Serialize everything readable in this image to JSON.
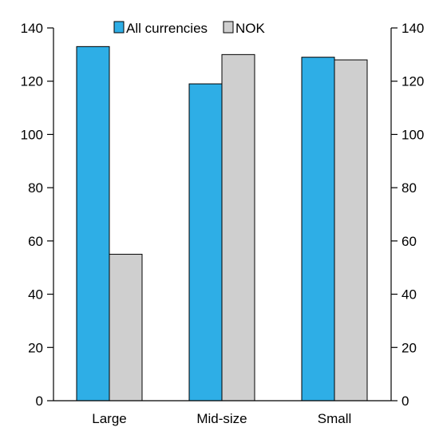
{
  "chart_data": {
    "type": "bar",
    "categories": [
      "Large",
      "Mid-size",
      "Small"
    ],
    "series": [
      {
        "name": "All currencies",
        "values": [
          133,
          119,
          129
        ],
        "color": "#2eaee6"
      },
      {
        "name": "NOK",
        "values": [
          55,
          130,
          128
        ],
        "color": "#cfcfcf"
      }
    ],
    "ylim": [
      0,
      140
    ],
    "yticks": [
      0,
      20,
      40,
      60,
      80,
      100,
      120,
      140
    ],
    "secondary_axis": true,
    "grid": false,
    "legend_position": "top"
  }
}
